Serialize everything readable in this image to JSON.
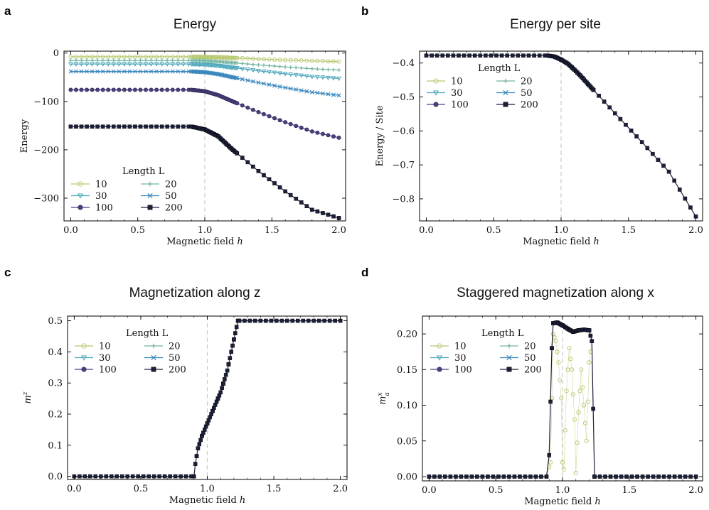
{
  "page": {
    "background": "#ffffff"
  },
  "series_styles": [
    {
      "name": "10",
      "color": "#b7c86f",
      "marker": "circle-open"
    },
    {
      "name": "20",
      "color": "#74b5a0",
      "marker": "plus"
    },
    {
      "name": "30",
      "color": "#4ca6bb",
      "marker": "triangle-down"
    },
    {
      "name": "50",
      "color": "#3a87bd",
      "marker": "x"
    },
    {
      "name": "100",
      "color": "#4b3f80",
      "marker": "circle"
    },
    {
      "name": "200",
      "color": "#1c1f3a",
      "marker": "square"
    }
  ],
  "critical_line": {
    "x": 1.0,
    "color": "#cccccc"
  },
  "chart_data": [
    {
      "panel": "a",
      "title": "Energy",
      "type": "line",
      "xlabel": "Magnetic field h",
      "ylabel": "Energy",
      "xlim": [
        -0.05,
        2.05
      ],
      "ylim": [
        -347,
        4
      ],
      "xticks": [
        0.0,
        0.5,
        1.0,
        1.5,
        2.0
      ],
      "xticklabels": [
        "0.0",
        "0.5",
        "1.0",
        "1.5",
        "2.0"
      ],
      "yticks": [
        0,
        -100,
        -200,
        -300
      ],
      "yticklabels": [
        "0",
        "−100",
        "−200",
        "−300"
      ],
      "legend": {
        "title": "Length L",
        "position": "lower-left",
        "entries": [
          "10",
          "20",
          "30",
          "50",
          "100",
          "200"
        ]
      },
      "series": [
        {
          "name": "10",
          "points": [
            [
              0.0,
              -7.6
            ],
            [
              0.9,
              -7.6
            ],
            [
              1.0,
              -7.9
            ],
            [
              1.1,
              -8.7
            ],
            [
              1.2,
              -9.9
            ],
            [
              1.4,
              -12.2
            ],
            [
              1.6,
              -14.3
            ],
            [
              1.8,
              -16.2
            ],
            [
              2.0,
              -17.5
            ]
          ]
        },
        {
          "name": "20",
          "points": [
            [
              0.0,
              -15.2
            ],
            [
              0.9,
              -15.2
            ],
            [
              1.0,
              -15.8
            ],
            [
              1.1,
              -17.4
            ],
            [
              1.2,
              -19.8
            ],
            [
              1.4,
              -24.4
            ],
            [
              1.6,
              -28.6
            ],
            [
              1.8,
              -32.4
            ],
            [
              2.0,
              -35.0
            ]
          ]
        },
        {
          "name": "30",
          "points": [
            [
              0.0,
              -22.8
            ],
            [
              0.9,
              -22.8
            ],
            [
              1.0,
              -23.7
            ],
            [
              1.1,
              -26.1
            ],
            [
              1.2,
              -29.7
            ],
            [
              1.4,
              -36.6
            ],
            [
              1.6,
              -42.9
            ],
            [
              1.8,
              -48.6
            ],
            [
              2.0,
              -52.5
            ]
          ]
        },
        {
          "name": "50",
          "points": [
            [
              0.0,
              -38.0
            ],
            [
              0.9,
              -38.0
            ],
            [
              1.0,
              -39.5
            ],
            [
              1.1,
              -43.5
            ],
            [
              1.2,
              -49.5
            ],
            [
              1.4,
              -61.0
            ],
            [
              1.6,
              -71.5
            ],
            [
              1.8,
              -81.0
            ],
            [
              2.0,
              -87.5
            ]
          ]
        },
        {
          "name": "100",
          "points": [
            [
              0.0,
              -76.0
            ],
            [
              0.9,
              -76.0
            ],
            [
              1.0,
              -79.0
            ],
            [
              1.1,
              -87.0
            ],
            [
              1.2,
              -99.0
            ],
            [
              1.4,
              -122.0
            ],
            [
              1.6,
              -143.0
            ],
            [
              1.8,
              -162.0
            ],
            [
              2.0,
              -175.0
            ]
          ]
        },
        {
          "name": "200",
          "points": [
            [
              0.0,
              -152.0
            ],
            [
              0.9,
              -152.0
            ],
            [
              1.0,
              -158.0
            ],
            [
              1.1,
              -172.0
            ],
            [
              1.2,
              -198.0
            ],
            [
              1.4,
              -244.0
            ],
            [
              1.6,
              -286.0
            ],
            [
              1.8,
              -324.0
            ],
            [
              2.0,
              -341.0
            ]
          ]
        }
      ]
    },
    {
      "panel": "b",
      "title": "Energy per site",
      "type": "line",
      "xlabel": "Magnetic field h",
      "ylabel": "Energy / Site",
      "xlim": [
        -0.05,
        2.05
      ],
      "ylim": [
        -0.865,
        -0.365
      ],
      "xticks": [
        0.0,
        0.5,
        1.0,
        1.5,
        2.0
      ],
      "xticklabels": [
        "0.0",
        "0.5",
        "1.0",
        "1.5",
        "2.0"
      ],
      "yticks": [
        -0.4,
        -0.5,
        -0.6,
        -0.7,
        -0.8
      ],
      "yticklabels": [
        "−0.4",
        "−0.5",
        "−0.6",
        "−0.7",
        "−0.8"
      ],
      "legend": {
        "title": "Length L",
        "position": "upper-left",
        "entries": [
          "10",
          "20",
          "30",
          "50",
          "100",
          "200"
        ]
      },
      "series": [
        {
          "name": "200",
          "points": [
            [
              0.0,
              -0.378
            ],
            [
              0.9,
              -0.378
            ],
            [
              0.95,
              -0.381
            ],
            [
              1.0,
              -0.39
            ],
            [
              1.05,
              -0.402
            ],
            [
              1.1,
              -0.42
            ],
            [
              1.15,
              -0.44
            ],
            [
              1.2,
              -0.462
            ],
            [
              1.3,
              -0.505
            ],
            [
              1.4,
              -0.548
            ],
            [
              1.6,
              -0.633
            ],
            [
              1.8,
              -0.72
            ],
            [
              2.0,
              -0.852
            ]
          ]
        }
      ]
    },
    {
      "panel": "c",
      "title": "Magnetization along z",
      "type": "line",
      "xlabel": "Magnetic field h",
      "ylabel": "m^z",
      "xlim": [
        -0.05,
        2.05
      ],
      "ylim": [
        -0.01,
        0.515
      ],
      "xticks": [
        0.0,
        0.5,
        1.0,
        1.5,
        2.0
      ],
      "xticklabels": [
        "0.0",
        "0.5",
        "1.0",
        "1.5",
        "2.0"
      ],
      "yticks": [
        0.0,
        0.1,
        0.2,
        0.3,
        0.4,
        0.5
      ],
      "yticklabels": [
        "0.0",
        "0.1",
        "0.2",
        "0.3",
        "0.4",
        "0.5"
      ],
      "legend": {
        "title": "Length L",
        "position": "upper-left",
        "entries": [
          "10",
          "20",
          "30",
          "50",
          "100",
          "200"
        ]
      },
      "series": [
        {
          "name": "200",
          "points": [
            [
              0.0,
              0.0
            ],
            [
              0.9,
              0.0
            ],
            [
              0.91,
              0.04
            ],
            [
              0.93,
              0.09
            ],
            [
              0.96,
              0.13
            ],
            [
              1.0,
              0.17
            ],
            [
              1.05,
              0.22
            ],
            [
              1.1,
              0.27
            ],
            [
              1.15,
              0.34
            ],
            [
              1.2,
              0.44
            ],
            [
              1.23,
              0.5
            ],
            [
              2.0,
              0.5
            ]
          ]
        }
      ]
    },
    {
      "panel": "d",
      "title": "Staggered magnetization along x",
      "type": "line",
      "xlabel": "Magnetic field h",
      "ylabel": "m_a^x",
      "xlim": [
        -0.05,
        2.05
      ],
      "ylim": [
        -0.006,
        0.225
      ],
      "xticks": [
        0.0,
        0.5,
        1.0,
        1.5,
        2.0
      ],
      "xticklabels": [
        "0.0",
        "0.5",
        "1.0",
        "1.5",
        "2.0"
      ],
      "yticks": [
        0.0,
        0.05,
        0.1,
        0.15,
        0.2
      ],
      "yticklabels": [
        "0.00",
        "0.05",
        "0.10",
        "0.15",
        "0.20"
      ],
      "legend": {
        "title": "Length L",
        "position": "upper-left",
        "entries": [
          "10",
          "20",
          "30",
          "50",
          "100",
          "200"
        ]
      },
      "series": [
        {
          "name": "10",
          "points": [
            [
              0.0,
              0.0
            ],
            [
              0.88,
              0.0
            ],
            [
              0.91,
              0.02
            ],
            [
              0.93,
              0.2
            ],
            [
              0.95,
              0.19
            ],
            [
              0.97,
              0.16
            ],
            [
              0.99,
              0.11
            ],
            [
              1.0,
              0.02
            ],
            [
              1.01,
              0.01
            ],
            [
              1.03,
              0.12
            ],
            [
              1.05,
              0.18
            ],
            [
              1.07,
              0.15
            ],
            [
              1.09,
              0.08
            ],
            [
              1.1,
              0.005
            ],
            [
              1.12,
              0.09
            ],
            [
              1.14,
              0.15
            ],
            [
              1.16,
              0.1
            ],
            [
              1.18,
              0.05
            ],
            [
              1.2,
              0.16
            ],
            [
              1.22,
              0.19
            ],
            [
              1.24,
              0.0
            ],
            [
              2.0,
              0.0
            ]
          ]
        },
        {
          "name": "200",
          "points": [
            [
              0.0,
              0.0
            ],
            [
              0.88,
              0.0
            ],
            [
              0.9,
              0.03
            ],
            [
              0.92,
              0.18
            ],
            [
              0.93,
              0.215
            ],
            [
              0.96,
              0.216
            ],
            [
              1.0,
              0.212
            ],
            [
              1.05,
              0.206
            ],
            [
              1.08,
              0.203
            ],
            [
              1.12,
              0.205
            ],
            [
              1.16,
              0.206
            ],
            [
              1.2,
              0.205
            ],
            [
              1.22,
              0.19
            ],
            [
              1.24,
              0.0
            ],
            [
              2.0,
              0.0
            ]
          ]
        }
      ]
    }
  ]
}
